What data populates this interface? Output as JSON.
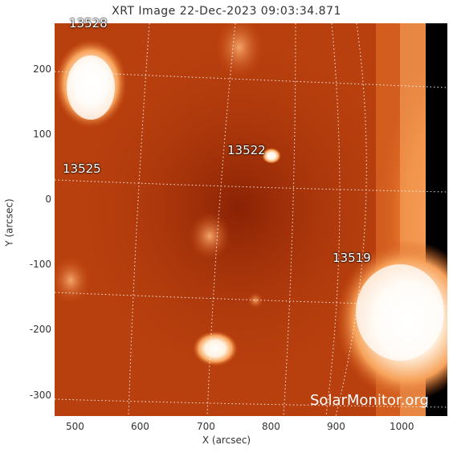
{
  "title": "XRT Image 22-Dec-2023 09:03:34.871",
  "xlabel": "X (arcsec)",
  "ylabel": "Y (arcsec)",
  "x_ticks": [
    "500",
    "600",
    "700",
    "800",
    "900",
    "1000"
  ],
  "y_ticks": [
    "200",
    "100",
    "0",
    "-100",
    "-200",
    "-300"
  ],
  "regions": [
    {
      "id": "13528",
      "label": "13528"
    },
    {
      "id": "13525",
      "label": "13525"
    },
    {
      "id": "13522",
      "label": "13522"
    },
    {
      "id": "13519",
      "label": "13519"
    }
  ],
  "watermark": "SolarMonitor.org",
  "colors": {
    "disk_dark": "#9a2a05",
    "disk_mid": "#c84a12",
    "bright": "#ffffff",
    "offlimb": "#000000"
  }
}
